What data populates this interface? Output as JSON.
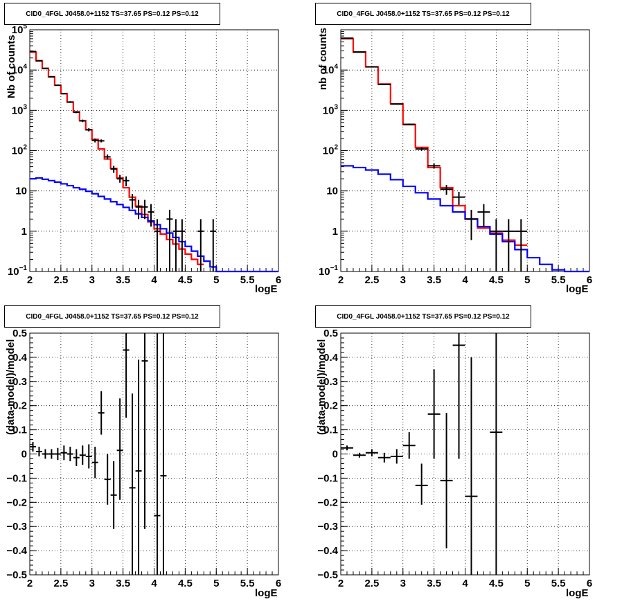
{
  "colors": {
    "model_total": "#ff0000",
    "model_background": "#0000ff",
    "data": "#000000"
  },
  "chart_data": [
    {
      "panel": "top-left",
      "type": "histogram-log",
      "title": "CID0_4FGL J0458.0+1152 TS=37.65 PS=0.12 PS=0.12",
      "xlabel": "logE",
      "ylabel": "Nb of counts",
      "xlim": [
        2,
        6
      ],
      "ylim": [
        0.1,
        100000
      ],
      "log_y": true,
      "grid": true,
      "xticks": [
        "2",
        "2.5",
        "3",
        "3.5",
        "4",
        "4.5",
        "5",
        "5.5",
        "6"
      ],
      "yticks": [
        {
          "v": 0.1,
          "base": "10",
          "exp": "−1"
        },
        {
          "v": 1,
          "label": "1"
        },
        {
          "v": 10,
          "label": "10"
        },
        {
          "v": 100,
          "base": "10",
          "exp": "2"
        },
        {
          "v": 1000,
          "base": "10",
          "exp": "3"
        },
        {
          "v": 10000,
          "base": "10",
          "exp": "4"
        },
        {
          "v": 100000,
          "base": "10",
          "exp": "5"
        }
      ],
      "bin_edges": [
        2.0,
        2.1,
        2.2,
        2.3,
        2.4,
        2.5,
        2.6,
        2.7,
        2.8,
        2.9,
        3.0,
        3.1,
        3.2,
        3.3,
        3.4,
        3.5,
        3.6,
        3.7,
        3.8,
        3.9,
        4.0,
        4.1,
        4.2,
        4.3,
        4.4,
        4.5,
        4.6,
        4.7,
        4.8,
        4.9,
        5.0,
        5.1,
        5.2,
        5.3,
        5.4,
        5.5,
        5.6,
        5.7,
        5.8,
        5.9,
        6.0
      ],
      "series": [
        {
          "name": "model_total",
          "color": "#ff0000",
          "values": [
            28000,
            17000,
            11000,
            6800,
            4200,
            2600,
            1600,
            920,
            550,
            330,
            190,
            110,
            62,
            36,
            21,
            12,
            7,
            4.2,
            2.6,
            1.7,
            1.15,
            0.85,
            0.62,
            0.48,
            0.36,
            0.27,
            0.2,
            0.15,
            null,
            null,
            null,
            null,
            null,
            null,
            null,
            null,
            null,
            null,
            null,
            null
          ]
        },
        {
          "name": "model_background",
          "color": "#0000ff",
          "values": [
            20,
            21,
            19.5,
            18,
            16.5,
            15,
            13.5,
            12,
            11,
            9.8,
            8.5,
            7.3,
            6.3,
            5.4,
            4.6,
            3.9,
            3.3,
            2.7,
            2.2,
            1.8,
            1.45,
            1.15,
            0.9,
            0.7,
            0.55,
            0.42,
            0.32,
            0.24,
            0.18,
            0.13,
            0.1,
            0.1,
            0.1,
            0.1,
            0.1,
            0.1,
            0.1,
            0.1,
            0.1,
            0.1
          ]
        }
      ],
      "data_points": [
        {
          "x": 2.05,
          "y": 29000,
          "lo": 28500,
          "hi": 29500
        },
        {
          "x": 2.15,
          "y": 17000,
          "lo": 16700,
          "hi": 17300
        },
        {
          "x": 2.25,
          "y": 11000,
          "lo": 10800,
          "hi": 11200
        },
        {
          "x": 2.35,
          "y": 6800,
          "lo": 6650,
          "hi": 6950
        },
        {
          "x": 2.45,
          "y": 4200,
          "lo": 4080,
          "hi": 4320
        },
        {
          "x": 2.55,
          "y": 2600,
          "lo": 2500,
          "hi": 2700
        },
        {
          "x": 2.65,
          "y": 1600,
          "lo": 1530,
          "hi": 1680
        },
        {
          "x": 2.75,
          "y": 900,
          "lo": 850,
          "hi": 950
        },
        {
          "x": 2.85,
          "y": 550,
          "lo": 510,
          "hi": 590
        },
        {
          "x": 2.95,
          "y": 330,
          "lo": 300,
          "hi": 360
        },
        {
          "x": 3.05,
          "y": 180,
          "lo": 160,
          "hi": 200
        },
        {
          "x": 3.15,
          "y": 175,
          "lo": 160,
          "hi": 190
        },
        {
          "x": 3.25,
          "y": 70,
          "lo": 60,
          "hi": 80
        },
        {
          "x": 3.35,
          "y": 35,
          "lo": 28,
          "hi": 42
        },
        {
          "x": 3.45,
          "y": 20,
          "lo": 16,
          "hi": 25
        },
        {
          "x": 3.55,
          "y": 18,
          "lo": 13,
          "hi": 23
        },
        {
          "x": 3.65,
          "y": 6,
          "lo": 3.6,
          "hi": 8.4
        },
        {
          "x": 3.75,
          "y": 4,
          "lo": 2,
          "hi": 6
        },
        {
          "x": 3.85,
          "y": 4,
          "lo": 2,
          "hi": 6
        },
        {
          "x": 3.95,
          "y": 3,
          "lo": 1.3,
          "hi": 4.7
        },
        {
          "x": 4.05,
          "y": 1,
          "lo": 0.1,
          "hi": 2
        },
        {
          "x": 4.25,
          "y": 2,
          "lo": 0.1,
          "hi": 3.4
        },
        {
          "x": 4.35,
          "y": 1,
          "lo": 0.1,
          "hi": 2
        },
        {
          "x": 4.45,
          "y": 1,
          "lo": 0.1,
          "hi": 2
        },
        {
          "x": 4.75,
          "y": 1,
          "lo": 0.1,
          "hi": 2
        },
        {
          "x": 4.95,
          "y": 1,
          "lo": 0.1,
          "hi": 2
        }
      ]
    },
    {
      "panel": "top-right",
      "type": "histogram-log",
      "title": "CID0_4FGL J0458.0+1152 TS=37.65 PS=0.12 PS=0.12",
      "xlabel": "logE",
      "ylabel": "nb of counts",
      "xlim": [
        2,
        6
      ],
      "ylim": [
        0.1,
        100000
      ],
      "log_y": true,
      "grid": true,
      "xticks": [
        "2",
        "2.5",
        "3",
        "3.5",
        "4",
        "4.5",
        "5",
        "5.5",
        "6"
      ],
      "yticks": [
        {
          "v": 0.1,
          "base": "10",
          "exp": "−1"
        },
        {
          "v": 1,
          "label": "1"
        },
        {
          "v": 10,
          "label": "10"
        },
        {
          "v": 100,
          "base": "10",
          "exp": "2"
        },
        {
          "v": 1000,
          "base": "10",
          "exp": "3"
        },
        {
          "v": 10000,
          "base": "10",
          "exp": "4"
        }
      ],
      "bin_edges": [
        2.0,
        2.2,
        2.4,
        2.6,
        2.8,
        3.0,
        3.2,
        3.4,
        3.6,
        3.8,
        4.0,
        4.2,
        4.4,
        4.6,
        4.8,
        5.0,
        5.2,
        5.4,
        5.6,
        5.8,
        6.0
      ],
      "series": [
        {
          "name": "model_total",
          "color": "#ff0000",
          "values": [
            60000,
            28000,
            12000,
            4500,
            1450,
            440,
            120,
            38,
            12,
            4.3,
            2.0,
            1.2,
            0.9,
            0.6,
            0.45,
            null,
            null,
            null,
            null,
            null
          ]
        },
        {
          "name": "model_background",
          "color": "#0000ff",
          "values": [
            42,
            38,
            33,
            26,
            19,
            13,
            9,
            6.3,
            4.3,
            3,
            2,
            1.3,
            0.85,
            0.55,
            0.35,
            0.22,
            0.15,
            0.11,
            0.1,
            0.1
          ]
        }
      ],
      "data_points": [
        {
          "x": 2.1,
          "y": 62000,
          "lo": 61000,
          "hi": 63000
        },
        {
          "x": 2.3,
          "y": 28000,
          "lo": 27500,
          "hi": 28500
        },
        {
          "x": 2.5,
          "y": 12000,
          "lo": 11800,
          "hi": 12200
        },
        {
          "x": 2.7,
          "y": 4400,
          "lo": 4300,
          "hi": 4500
        },
        {
          "x": 2.9,
          "y": 1430,
          "lo": 1390,
          "hi": 1470
        },
        {
          "x": 3.1,
          "y": 450,
          "lo": 430,
          "hi": 470
        },
        {
          "x": 3.3,
          "y": 110,
          "lo": 100,
          "hi": 120
        },
        {
          "x": 3.5,
          "y": 42,
          "lo": 36,
          "hi": 48
        },
        {
          "x": 3.7,
          "y": 11,
          "lo": 8,
          "hi": 14
        },
        {
          "x": 3.9,
          "y": 7,
          "lo": 4.5,
          "hi": 9.5
        },
        {
          "x": 4.1,
          "y": 2,
          "lo": 0.6,
          "hi": 3.4
        },
        {
          "x": 4.3,
          "y": 3,
          "lo": 1.3,
          "hi": 4.7
        },
        {
          "x": 4.5,
          "y": 1,
          "lo": 0.1,
          "hi": 2
        },
        {
          "x": 4.7,
          "y": 1,
          "lo": 0.1,
          "hi": 2
        },
        {
          "x": 4.9,
          "y": 1,
          "lo": 0.1,
          "hi": 2
        }
      ]
    },
    {
      "panel": "bottom-left",
      "type": "scatter-errorbar",
      "title": "CID0_4FGL J0458.0+1152 TS=37.65 PS=0.12 PS=0.12",
      "xlabel": "logE",
      "ylabel": "(data-model)/model",
      "xlim": [
        2,
        6
      ],
      "ylim": [
        -0.5,
        0.5
      ],
      "grid": true,
      "xticks": [
        "2",
        "2.5",
        "3",
        "3.5",
        "4",
        "4.5",
        "5",
        "5.5",
        "6"
      ],
      "yticks": [
        "−0.5",
        "−0.4",
        "−0.3",
        "−0.2",
        "−0.1",
        "0",
        "0.1",
        "0.2",
        "0.3",
        "0.4",
        "0.5"
      ],
      "bin_halfwidth": 0.05,
      "data_points": [
        {
          "x": 2.05,
          "y": 0.03,
          "lo": 0.01,
          "hi": 0.05
        },
        {
          "x": 2.15,
          "y": 0.01,
          "lo": -0.01,
          "hi": 0.03
        },
        {
          "x": 2.25,
          "y": 0.0,
          "lo": -0.02,
          "hi": 0.02
        },
        {
          "x": 2.35,
          "y": 0.0,
          "lo": -0.02,
          "hi": 0.02
        },
        {
          "x": 2.45,
          "y": 0.0,
          "lo": -0.025,
          "hi": 0.025
        },
        {
          "x": 2.55,
          "y": 0.005,
          "lo": -0.025,
          "hi": 0.035
        },
        {
          "x": 2.65,
          "y": 0.0,
          "lo": -0.03,
          "hi": 0.03
        },
        {
          "x": 2.75,
          "y": -0.015,
          "lo": -0.05,
          "hi": 0.02
        },
        {
          "x": 2.85,
          "y": -0.005,
          "lo": -0.045,
          "hi": 0.035
        },
        {
          "x": 2.95,
          "y": -0.01,
          "lo": -0.06,
          "hi": 0.04
        },
        {
          "x": 3.05,
          "y": -0.035,
          "lo": -0.1,
          "hi": 0.03
        },
        {
          "x": 3.15,
          "y": 0.17,
          "lo": 0.08,
          "hi": 0.26
        },
        {
          "x": 3.25,
          "y": -0.105,
          "lo": -0.21,
          "hi": 0.0
        },
        {
          "x": 3.35,
          "y": -0.17,
          "lo": -0.31,
          "hi": -0.03
        },
        {
          "x": 3.45,
          "y": 0.015,
          "lo": -0.19,
          "hi": 0.23
        },
        {
          "x": 3.55,
          "y": 0.43,
          "lo": 0.15,
          "hi": 0.5
        },
        {
          "x": 3.65,
          "y": -0.14,
          "lo": -0.5,
          "hi": 0.25
        },
        {
          "x": 3.75,
          "y": -0.07,
          "lo": -0.5,
          "hi": 0.39
        },
        {
          "x": 3.85,
          "y": 0.385,
          "lo": -0.31,
          "hi": 0.5
        },
        {
          "x": 4.05,
          "y": -0.255,
          "lo": -0.5,
          "hi": 0.5
        },
        {
          "x": 4.15,
          "y": -0.09,
          "lo": -0.5,
          "hi": 0.5
        }
      ]
    },
    {
      "panel": "bottom-right",
      "type": "scatter-errorbar",
      "title": "CID0_4FGL J0458.0+1152 TS=37.65 PS=0.12 PS=0.12",
      "xlabel": "logE",
      "ylabel": "(data-model)/model",
      "xlim": [
        2,
        6
      ],
      "ylim": [
        -0.5,
        0.5
      ],
      "grid": true,
      "xticks": [
        "2",
        "2.5",
        "3",
        "3.5",
        "4",
        "4.5",
        "5",
        "5.5",
        "6"
      ],
      "yticks": [
        "−0.5",
        "−0.4",
        "−0.3",
        "−0.2",
        "−0.1",
        "0",
        "0.1",
        "0.2",
        "0.3",
        "0.4",
        "0.5"
      ],
      "bin_halfwidth": 0.1,
      "data_points": [
        {
          "x": 2.1,
          "y": 0.025,
          "lo": 0.015,
          "hi": 0.035
        },
        {
          "x": 2.3,
          "y": -0.005,
          "lo": -0.015,
          "hi": 0.005
        },
        {
          "x": 2.5,
          "y": 0.005,
          "lo": -0.01,
          "hi": 0.02
        },
        {
          "x": 2.7,
          "y": -0.015,
          "lo": -0.035,
          "hi": 0.005
        },
        {
          "x": 2.9,
          "y": -0.01,
          "lo": -0.04,
          "hi": 0.02
        },
        {
          "x": 3.1,
          "y": 0.035,
          "lo": -0.02,
          "hi": 0.09
        },
        {
          "x": 3.3,
          "y": -0.13,
          "lo": -0.21,
          "hi": -0.04
        },
        {
          "x": 3.5,
          "y": 0.165,
          "lo": -0.02,
          "hi": 0.35
        },
        {
          "x": 3.7,
          "y": -0.11,
          "lo": -0.39,
          "hi": 0.17
        },
        {
          "x": 3.9,
          "y": 0.45,
          "lo": -0.02,
          "hi": 0.5
        },
        {
          "x": 4.1,
          "y": -0.175,
          "lo": -0.5,
          "hi": 0.4
        },
        {
          "x": 4.5,
          "y": 0.09,
          "lo": -0.5,
          "hi": 0.5
        }
      ]
    }
  ]
}
